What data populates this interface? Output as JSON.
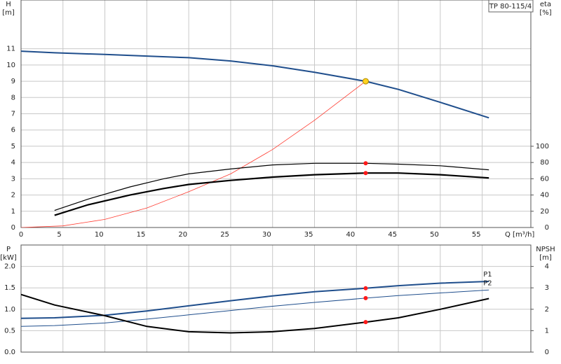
{
  "chart_data": [
    {
      "type": "line",
      "title": "TP 80-115/4",
      "ylabel": [
        "H",
        "[m]"
      ],
      "y2label": [
        "eta",
        "[%]"
      ],
      "xlabel": "Q [m³/h]",
      "xlim": [
        0,
        60.8
      ],
      "xticks": [
        0,
        5,
        10,
        15,
        20,
        25,
        30,
        35,
        40,
        45,
        50,
        55
      ],
      "ylim": [
        0,
        14
      ],
      "yticks": [
        0,
        1,
        2,
        3,
        4,
        5,
        6,
        7,
        8,
        9,
        10,
        11
      ],
      "y2lim": [
        0,
        280
      ],
      "y2ticks": [
        0,
        20,
        40,
        60,
        80,
        100
      ],
      "grid": true,
      "series": [
        {
          "color": "#1f4e8c",
          "linewidth": 2,
          "x": [
            0,
            4,
            10,
            15,
            20,
            25,
            30,
            35,
            41.1,
            45,
            50,
            55.8
          ],
          "values": [
            10.85,
            10.75,
            10.65,
            10.55,
            10.45,
            10.25,
            9.95,
            9.55,
            9.0,
            8.5,
            7.7,
            6.75
          ]
        },
        {
          "color": "#ff3b30",
          "linewidth": 0.8,
          "x": [
            0,
            5,
            10,
            15,
            20,
            25,
            30,
            35,
            41.1
          ],
          "values": [
            0,
            0.1,
            0.5,
            1.2,
            2.2,
            3.3,
            4.8,
            6.6,
            9.0
          ]
        },
        {
          "color": "#000000",
          "linewidth": 1.2,
          "axis": "y2",
          "x": [
            4,
            8,
            13,
            17,
            20,
            25,
            30,
            35,
            41.1,
            45,
            50,
            55.8
          ],
          "values": [
            21,
            35,
            50,
            60,
            66,
            72,
            77,
            79,
            79,
            78,
            76,
            71
          ]
        },
        {
          "color": "#000000",
          "linewidth": 2.2,
          "axis": "y2",
          "x": [
            4,
            8,
            13,
            17,
            20,
            25,
            30,
            35,
            41.1,
            45,
            50,
            55.8
          ],
          "values": [
            15,
            28,
            40,
            48,
            53,
            58,
            62,
            65,
            67,
            67,
            65,
            61
          ]
        }
      ],
      "points": [
        {
          "x": 41.1,
          "y": 9.0,
          "color": "#ffd21f"
        },
        {
          "x": 41.1,
          "y": 79,
          "axis": "y2",
          "color": "#ff1a1a"
        },
        {
          "x": 41.1,
          "y": 67,
          "axis": "y2",
          "color": "#ff1a1a"
        }
      ]
    },
    {
      "type": "line",
      "ylabel": [
        "P",
        "[kW]"
      ],
      "y2label": [
        "NPSH",
        "[m]"
      ],
      "xlim": [
        0,
        60.8
      ],
      "ylim": [
        0,
        2.5
      ],
      "yticks": [
        {
          "value": 0,
          "label": "0.0"
        },
        0.5,
        {
          "value": 1,
          "label": "1.0"
        },
        1.5,
        {
          "value": 2,
          "label": "2.0"
        }
      ],
      "y2lim": [
        0,
        5
      ],
      "y2ticks": [
        0,
        1,
        2,
        3,
        4
      ],
      "grid": true,
      "series": [
        {
          "name": "P1",
          "color": "#1f4e8c",
          "linewidth": 2,
          "x": [
            0,
            4,
            10,
            15,
            20,
            25,
            30,
            35,
            41.1,
            45,
            50,
            55.8
          ],
          "values": [
            0.79,
            0.8,
            0.86,
            0.96,
            1.08,
            1.2,
            1.31,
            1.41,
            1.49,
            1.55,
            1.61,
            1.65
          ]
        },
        {
          "name": "P2",
          "color": "#1f4e8c",
          "linewidth": 1,
          "x": [
            0,
            4,
            10,
            15,
            20,
            25,
            30,
            35,
            41.1,
            45,
            50,
            55.8
          ],
          "values": [
            0.6,
            0.62,
            0.68,
            0.77,
            0.87,
            0.97,
            1.07,
            1.16,
            1.26,
            1.32,
            1.38,
            1.45
          ]
        },
        {
          "color": "#000000",
          "linewidth": 2,
          "axis": "y2",
          "x": [
            0,
            4,
            10,
            15,
            20,
            25,
            30,
            35,
            41.1,
            45,
            50,
            55.8
          ],
          "values": [
            2.69,
            2.2,
            1.7,
            1.2,
            0.95,
            0.9,
            0.95,
            1.1,
            1.4,
            1.6,
            2.0,
            2.5
          ]
        }
      ],
      "points": [
        {
          "x": 41.1,
          "y": 1.49,
          "color": "#ff1a1a"
        },
        {
          "x": 41.1,
          "y": 1.26,
          "color": "#ff1a1a"
        },
        {
          "x": 41.1,
          "y": 1.4,
          "axis": "y2",
          "color": "#ff1a1a"
        }
      ]
    }
  ]
}
